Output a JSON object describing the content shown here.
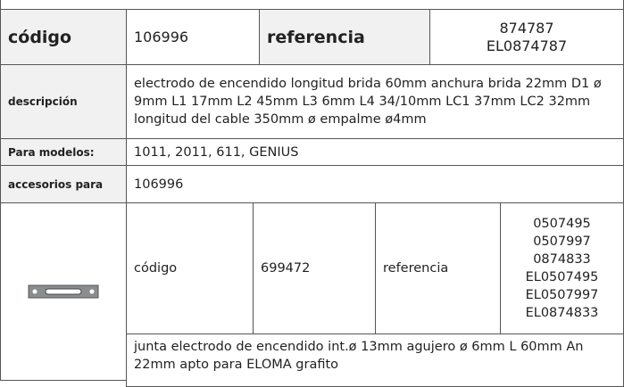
{
  "header_row": {
    "codigo_label": "código",
    "codigo": "106996",
    "referencia_label": "referencia",
    "referencias": [
      "874787",
      "EL0874787"
    ]
  },
  "rows": [
    {
      "label": "descripción",
      "value": "electrodo de encendido  longitud brida 60mm anchura brida 22mm D1 ø 9mm L1 17mm L2 45mm L3 6mm L4 34/10mm LC1 37mm LC2 32mm longitud del cable  350mm ø empalme ø4mm"
    },
    {
      "label": "Para modelos:",
      "value": "1011, 2011, 611, GENIUS"
    },
    {
      "label": "accesorios para",
      "value": "106996"
    }
  ],
  "accessory": {
    "codigo_label": "código",
    "codigo": "699472",
    "referencia_label": "referencia",
    "referencias": [
      "0507495",
      "0507997",
      "0874833",
      "EL0507495",
      "EL0507997",
      "EL0874833"
    ],
    "description": "junta  electrodo de encendido int.ø 13mm agujero ø 6mm L 60mm An 22mm apto para ELOMA grafito"
  }
}
